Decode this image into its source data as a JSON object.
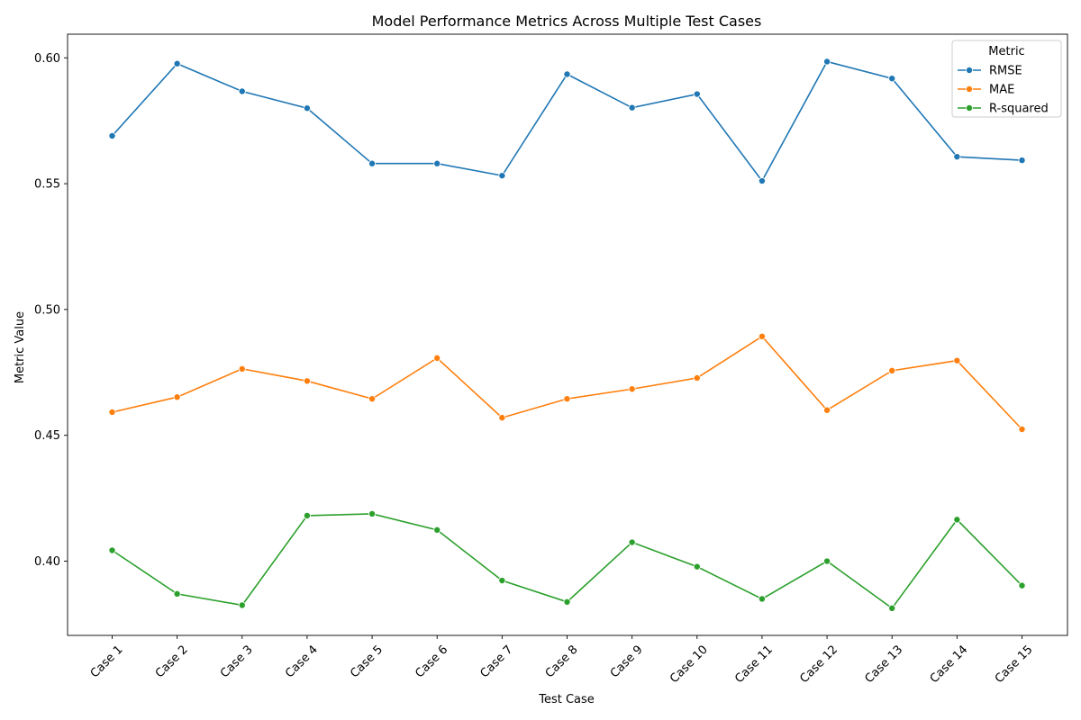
{
  "chart_data": {
    "type": "line",
    "title": "Model Performance Metrics Across Multiple Test Cases",
    "xlabel": "Test Case",
    "ylabel": "Metric Value",
    "categories": [
      "Case 1",
      "Case 2",
      "Case 3",
      "Case 4",
      "Case 5",
      "Case 6",
      "Case 7",
      "Case 8",
      "Case 9",
      "Case 10",
      "Case 11",
      "Case 12",
      "Case 13",
      "Case 14",
      "Case 15"
    ],
    "ylim": [
      0.3705,
      0.6094
    ],
    "yticks": [
      0.4,
      0.45,
      0.5,
      0.55,
      0.6
    ],
    "ytick_labels": [
      "0.40",
      "0.45",
      "0.50",
      "0.55",
      "0.60"
    ],
    "grid": false,
    "legend": {
      "title": "Metric",
      "position": "top-right"
    },
    "series": [
      {
        "name": "RMSE",
        "color": "#1f77b4",
        "values": [
          0.569,
          0.5977,
          0.5867,
          0.58,
          0.558,
          0.558,
          0.5532,
          0.5935,
          0.5802,
          0.5856,
          0.5511,
          0.5985,
          0.5918,
          0.5607,
          0.5593
        ]
      },
      {
        "name": "MAE",
        "color": "#ff7f0e",
        "values": [
          0.4592,
          0.4652,
          0.4764,
          0.4716,
          0.4645,
          0.4807,
          0.457,
          0.4645,
          0.4684,
          0.4728,
          0.4893,
          0.46,
          0.4757,
          0.4797,
          0.4524
        ]
      },
      {
        "name": "R-squared",
        "color": "#2ca02c",
        "values": [
          0.4043,
          0.387,
          0.3825,
          0.4181,
          0.4188,
          0.4124,
          0.3923,
          0.3838,
          0.4075,
          0.3978,
          0.385,
          0.4,
          0.3813,
          0.4165,
          0.3903
        ]
      }
    ]
  }
}
